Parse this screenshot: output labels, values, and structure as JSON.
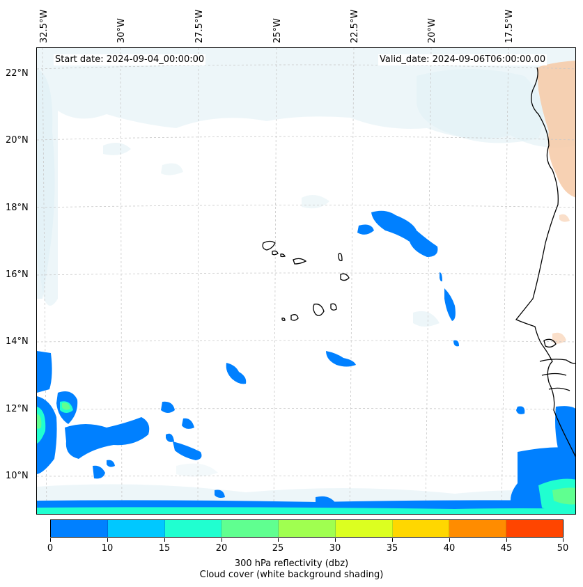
{
  "map": {
    "start_date": "Start date: 2024-09-04_00:00:00",
    "valid_date": "Valid_date: 2024-09-06T06:00:00.00",
    "lon_labels": [
      "32.5°W",
      "30°W",
      "27.5°W",
      "25°W",
      "22.5°W",
      "20°W",
      "17.5°W"
    ],
    "lat_labels": [
      "22°N",
      "20°N",
      "18°N",
      "16°N",
      "14°N",
      "12°N",
      "10°N"
    ],
    "region": "Eastern tropical Atlantic, Cape Verde and West African coast",
    "gridlines": true
  },
  "colorbar": {
    "ticks": [
      "0",
      "10",
      "15",
      "20",
      "25",
      "30",
      "35",
      "40",
      "45",
      "50"
    ],
    "colors": [
      "#0080ff",
      "#00c8ff",
      "#20ffd0",
      "#60ff90",
      "#a0ff50",
      "#dcff20",
      "#ffd700",
      "#ff8c00",
      "#ff4500"
    ],
    "label_line1": "300 hPa reflectivity (dbz)",
    "label_line2": "Cloud cover (white background shading)"
  },
  "colors": {
    "cloud": "#d6ebf2",
    "land_warm": "#f6c9a6",
    "reflectivity_low": "#0080ff",
    "reflectivity_mid": "#20ffd0",
    "reflectivity_high": "#60ff90"
  }
}
